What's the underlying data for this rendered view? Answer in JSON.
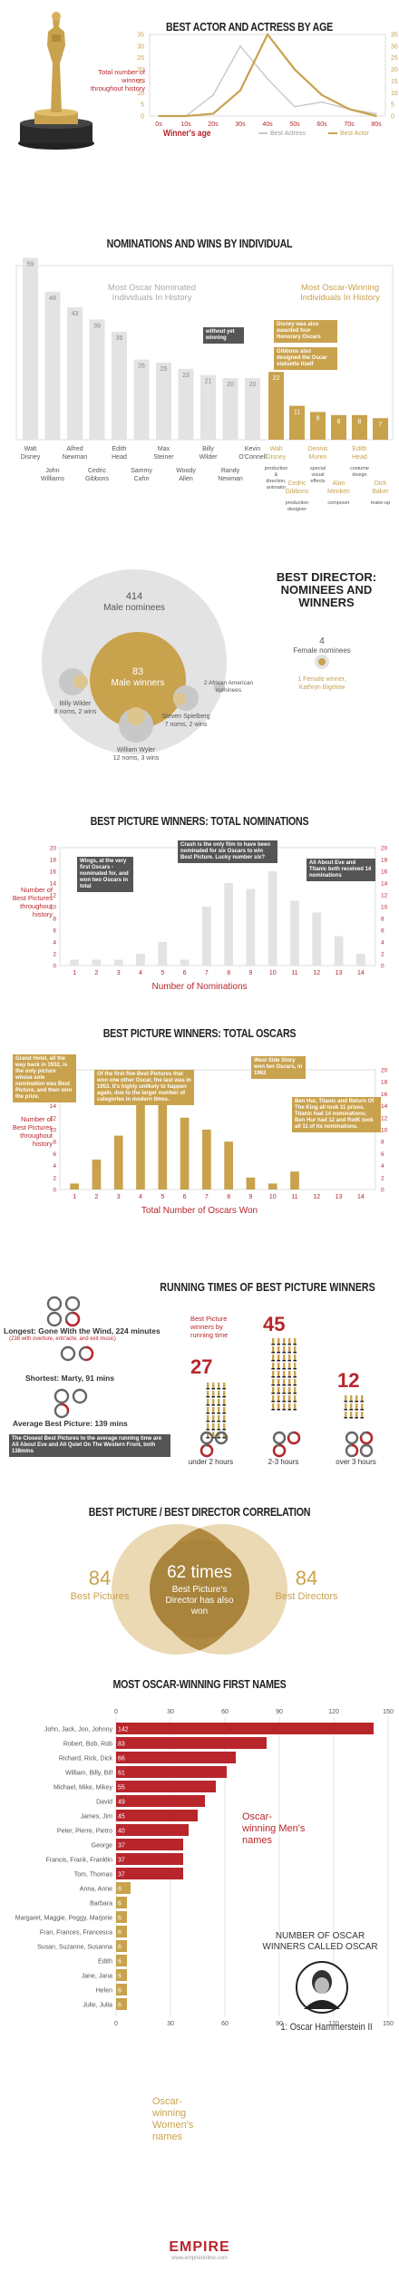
{
  "colors": {
    "gold": "#c9a24e",
    "red": "#b8262b",
    "dark": "#555555",
    "grey": "#c8c8c8",
    "lightgrey": "#e3e3e3"
  },
  "age_section": {
    "title": "BEST ACTOR AND ACTRESS BY AGE",
    "ylabel": "Total number of winners throughout history",
    "xlabel": "Winner's age",
    "legend_actress": "Best Actress",
    "legend_actor": "Best Actor"
  },
  "nominations_section": {
    "title": "NOMINATIONS AND WINS BY INDIVIDUAL",
    "left_heading": "Most Oscar Nominated Individuals In History",
    "right_heading": "Most Oscar-Winning Individuals In History",
    "note_without_yet": "without yet winning",
    "note_disney": "Disney was also awarded four Honorary Oscars",
    "note_gibbons": "Gibbons also designed the Oscar statuette itself"
  },
  "director_section": {
    "title": "BEST DIRECTOR: NOMINEES AND WINNERS",
    "male_nominees_count": "414",
    "male_nominees_label": "Male nominees",
    "male_winners_count": "83",
    "male_winners_label": "Male winners",
    "female_count": "4",
    "female_label": "Female nominees",
    "female_winner": "1 Female winner, Kathryn Bigelow",
    "african_american": "2 African American nominees",
    "wilder": "Billy Wilder",
    "wilder_stats": "8 noms, 2 wins",
    "spielberg": "Steven Spielberg",
    "spielberg_stats": "7 noms, 2 wins",
    "wyler": "William Wyler",
    "wyler_stats": "12 noms, 3 wins"
  },
  "bp_noms_section": {
    "title": "BEST PICTURE WINNERS: TOTAL NOMINATIONS",
    "ylabel": "Number of Best Pictures throughout history",
    "xlabel": "Number of Nominations",
    "note_wings": "Wings, at the very first Oscars - nominated for, and won two Oscars in total",
    "note_crash": "Crash is the only film to have been nominated for six Oscars to win Best Picture. Lucky number six?",
    "note_eve": "All About Eve and Titanic both received 14 nominations"
  },
  "bp_oscars_section": {
    "title": "BEST PICTURE WINNERS: TOTAL OSCARS",
    "ylabel": "Number of Best Pictures throughout history",
    "xlabel": "Total Number of Oscars Won",
    "note_grand": "Grand Hotel, all the way back in 1932, is the only picture whose sole nomination was Best Picture, and then won the prize.",
    "note_first_five": "Of the first five Best Pictures that won one other Oscar, the last was in 1953. It's highly unlikely to happen again, due to the larger number of categories in modern times.",
    "note_west": "West Side Story won ten Oscars, in 1962",
    "note_benhur": "Ben Hur, Titanic and Return Of The King all took 11 prizes. Titanic had 14 nominations; Ben Hur had 12 and RotK took all 11 of its nominations."
  },
  "running_section": {
    "title": "RUNNING TIMES OF BEST PICTURE WINNERS",
    "longest": "Longest: Gone With the Wind, 224 minutes",
    "longest_sub": "(238 with overture, entr'acte, and exit music)",
    "shortest": "Shortest: Marty, 91 mins",
    "average": "Average Best Picture: 139 mins",
    "closest": "The Closest Best Pictures to the average running time are All About Eve and All Quiet On The Western Front, both 138mins",
    "by_runtime_label": "Best Picture winners by running time",
    "groups": [
      {
        "count": "27",
        "label": "under 2 hours"
      },
      {
        "count": "45",
        "label": "2-3 hours"
      },
      {
        "count": "12",
        "label": "over 3 hours"
      }
    ]
  },
  "correlation_section": {
    "title": "BEST PICTURE / BEST DIRECTOR CORRELATION",
    "left_count": "84",
    "left_label": "Best Pictures",
    "right_count": "84",
    "right_label": "Best Directors",
    "center_count": "62 times",
    "center_label": "Best Picture's Director has also won"
  },
  "names_section": {
    "title": "MOST OSCAR-WINNING FIRST NAMES",
    "men_label": "Oscar-winning Men's names",
    "women_label": "Oscar-winning Women's names",
    "oscar_title": "NUMBER OF OSCAR WINNERS CALLED OSCAR",
    "oscar_answer": "1: Oscar Hammerstein II"
  },
  "footer": {
    "brand": "EMPIRE",
    "url": "www.empireonline.com"
  },
  "chart_data": [
    {
      "type": "line",
      "title": "BEST ACTOR AND ACTRESS BY AGE",
      "xlabel": "Winner's age",
      "ylabel": "Total number of winners throughout history",
      "categories": [
        "0s",
        "10s",
        "20s",
        "30s",
        "40s",
        "50s",
        "60s",
        "70s",
        "80s"
      ],
      "series": [
        {
          "name": "Best Actress",
          "values": [
            0,
            0,
            9,
            30,
            16,
            4,
            6,
            3,
            1
          ]
        },
        {
          "name": "Best Actor",
          "values": [
            0,
            0,
            1,
            11,
            35,
            20,
            9,
            3,
            0
          ]
        }
      ],
      "ylim": [
        0,
        35
      ],
      "yticks": [
        0,
        5,
        10,
        15,
        20,
        25,
        30,
        35
      ]
    },
    {
      "type": "bar",
      "title": "NOMINATIONS AND WINS BY INDIVIDUAL",
      "nominated": [
        {
          "name": "Walt Disney",
          "value": 59
        },
        {
          "name": "John Williams",
          "value": 48
        },
        {
          "name": "Alfred Newman",
          "value": 43
        },
        {
          "name": "Cedric Gibbons",
          "value": 39
        },
        {
          "name": "Edith Head",
          "value": 35
        },
        {
          "name": "Sammy Cahn",
          "value": 26
        },
        {
          "name": "Max Steiner",
          "value": 25
        },
        {
          "name": "Woody Allen",
          "value": 23
        },
        {
          "name": "Billy Wilder",
          "value": 21
        },
        {
          "name": "Randy Newman",
          "value": 20
        },
        {
          "name": "Kevin O'Connell",
          "value": 20
        }
      ],
      "winners": [
        {
          "name": "Walt Disney",
          "value": 22,
          "role": "production & direction, animator"
        },
        {
          "name": "Cedric Gibbons",
          "value": 11,
          "role": "production designer"
        },
        {
          "name": "Dennis Muren",
          "value": 9,
          "role": "special visual effects"
        },
        {
          "name": "Alan Menken",
          "value": 8,
          "role": "composer"
        },
        {
          "name": "Edith Head",
          "value": 8,
          "role": "costume design"
        },
        {
          "name": "Dick Baker",
          "value": 7,
          "role": "make-up"
        }
      ]
    },
    {
      "type": "bar",
      "title": "BEST PICTURE WINNERS: TOTAL NOMINATIONS",
      "xlabel": "Number of Nominations",
      "ylabel": "Number of Best Pictures throughout history",
      "categories": [
        "1",
        "2",
        "3",
        "4",
        "5",
        "6",
        "7",
        "8",
        "9",
        "10",
        "11",
        "12",
        "13",
        "14"
      ],
      "values": [
        1,
        1,
        1,
        2,
        4,
        1,
        10,
        14,
        13,
        16,
        11,
        9,
        5,
        2
      ],
      "ylim": [
        0,
        20
      ]
    },
    {
      "type": "bar",
      "title": "BEST PICTURE WINNERS: TOTAL OSCARS",
      "xlabel": "Total Number of Oscars Won",
      "ylabel": "Number of Best Pictures throughout history",
      "categories": [
        "1",
        "2",
        "3",
        "4",
        "5",
        "6",
        "7",
        "8",
        "9",
        "10",
        "11",
        "12",
        "13",
        "14"
      ],
      "values": [
        1,
        5,
        9,
        16,
        17,
        12,
        10,
        8,
        2,
        1,
        3,
        0,
        0,
        0
      ],
      "ylim": [
        0,
        20
      ]
    },
    {
      "type": "bar",
      "title": "MOST OSCAR-WINNING FIRST NAMES",
      "xticks": [
        0,
        30,
        60,
        90,
        120,
        150
      ],
      "categories": [
        "John, Jack, Jon, Johnny",
        "Robert, Bob, Rob",
        "Richard, Rick, Dick",
        "William, Billy, Bill",
        "Michael, Mike, Mikey",
        "David",
        "James, Jim",
        "Peter, Pierre, Pietro",
        "George",
        "Francis, Frank, Franklin",
        "Tom, Thomas",
        "Anna, Anne",
        "Barbara",
        "Margaret, Maggie, Peggy, Marjorie",
        "Fran, Frances, Francesca",
        "Susan, Suzanne, Susanna",
        "Edith",
        "Jane, Jana",
        "Helen",
        "Julie, Julia"
      ],
      "values": [
        142,
        83,
        66,
        61,
        55,
        49,
        45,
        40,
        37,
        37,
        37,
        8,
        6,
        6,
        6,
        6,
        6,
        6,
        6,
        6
      ],
      "groups": [
        "men",
        "men",
        "men",
        "men",
        "men",
        "men",
        "men",
        "men",
        "men",
        "men",
        "men",
        "women",
        "women",
        "women",
        "women",
        "women",
        "women",
        "women",
        "women",
        "women"
      ]
    }
  ]
}
